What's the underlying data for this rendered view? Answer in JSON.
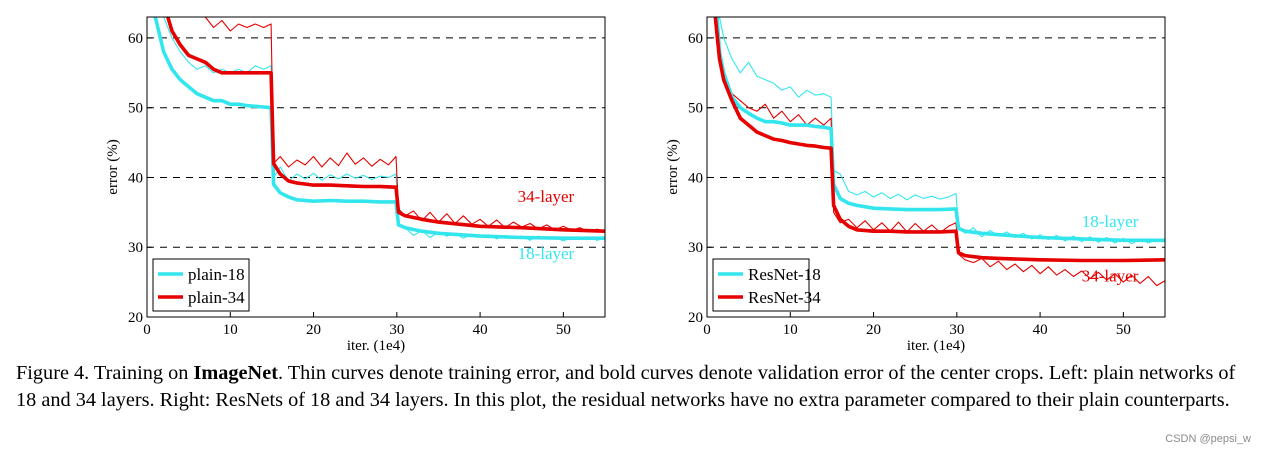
{
  "caption": {
    "figure_label": "Figure 4. Training on ",
    "bold_term": "ImageNet",
    "text": ". Thin curves denote training error, and bold curves denote validation error of the center crops. Left: plain networks of 18 and 34 layers. Right: ResNets of 18 and 34 layers. In this plot, the residual networks have no extra parameter compared to their plain counterparts."
  },
  "watermark": "CSDN @pepsi_w",
  "colors": {
    "cyan": "#33e6ee",
    "red": "#e60000"
  },
  "chart_data": [
    {
      "type": "line",
      "xlabel": "iter. (1e4)",
      "ylabel": "error (%)",
      "xlim": [
        0,
        55
      ],
      "ylim": [
        20,
        63
      ],
      "xticks": [
        0,
        10,
        20,
        30,
        40,
        50
      ],
      "yticks": [
        20,
        30,
        40,
        50,
        60
      ],
      "grid": "dashed horizontal",
      "legend_placement": "bottom-left",
      "annotations": [
        {
          "text": "34-layer",
          "x": 44.5,
          "y": 36.5,
          "color": "#e60000"
        },
        {
          "text": "18-layer",
          "x": 44.5,
          "y": 28.3,
          "color": "#33e6ee"
        }
      ],
      "series": [
        {
          "name": "plain-18",
          "role": "validation",
          "color": "#33e6ee",
          "x": [
            1,
            2,
            3,
            4,
            5,
            6,
            7,
            8,
            9,
            10,
            11,
            12,
            13,
            14,
            14.9,
            15.2,
            16,
            17,
            18,
            20,
            22,
            24,
            26,
            28,
            29.9,
            30.2,
            31,
            33,
            35,
            40,
            45,
            50,
            55
          ],
          "y": [
            63,
            58,
            55.5,
            54,
            53,
            52,
            51.5,
            51,
            51,
            50.5,
            50.5,
            50.3,
            50.2,
            50.1,
            50,
            39,
            37.8,
            37.2,
            36.8,
            36.6,
            36.7,
            36.6,
            36.6,
            36.5,
            36.5,
            33.2,
            32.8,
            32.3,
            32,
            31.6,
            31.4,
            31.3,
            31.3
          ]
        },
        {
          "name": "plain-34",
          "role": "validation",
          "color": "#e60000",
          "x": [
            2.5,
            3,
            4,
            5,
            6,
            7,
            8,
            9,
            10,
            11,
            12,
            13,
            14,
            14.9,
            15.2,
            16,
            17,
            18,
            20,
            22,
            24,
            26,
            28,
            29.9,
            30.2,
            31,
            33,
            35,
            40,
            45,
            50,
            55
          ],
          "y": [
            63,
            61,
            59,
            57.5,
            57,
            56.5,
            55.5,
            55,
            55,
            55,
            55,
            55,
            55,
            55,
            42,
            40.5,
            39.5,
            39.2,
            38.9,
            38.9,
            38.8,
            38.7,
            38.7,
            38.6,
            35,
            34.5,
            34,
            33.6,
            33,
            32.8,
            32.5,
            32.3
          ]
        },
        {
          "name": "plain-18 (train)",
          "role": "training",
          "color": "#33e6ee",
          "x": [
            2,
            3,
            4,
            5,
            6,
            7,
            8,
            9,
            10,
            11,
            12,
            13,
            14,
            14.9,
            15.2,
            16,
            17,
            18,
            19,
            20,
            21,
            22,
            23,
            24,
            25,
            26,
            27,
            28,
            29,
            29.9,
            30.2,
            31,
            32,
            33,
            34,
            35,
            36,
            37,
            38,
            39,
            40,
            41,
            42,
            43,
            44,
            45,
            46,
            47,
            48,
            49,
            50,
            51,
            52,
            53,
            54,
            55
          ],
          "y": [
            63,
            60,
            58,
            56.5,
            55.5,
            56,
            55,
            55.5,
            55,
            55.5,
            55,
            56,
            55.5,
            56,
            40,
            41.5,
            39.5,
            40.5,
            39.8,
            40.6,
            39.6,
            40.4,
            39.8,
            40.5,
            39.9,
            40.3,
            39.7,
            40.2,
            40,
            40.5,
            33,
            32.8,
            31.7,
            32.4,
            31.4,
            32.2,
            31.6,
            32,
            31.3,
            31.9,
            31.5,
            31.8,
            31.2,
            31.7,
            31.4,
            31.6,
            31,
            31.6,
            31.2,
            31.5,
            30.9,
            31.4,
            31.1,
            31.5,
            31,
            31.3
          ]
        },
        {
          "name": "plain-34 (train)",
          "role": "training",
          "color": "#e60000",
          "x": [
            7,
            8,
            9,
            10,
            11,
            12,
            13,
            14,
            14.9,
            15.2,
            16,
            17,
            18,
            19,
            20,
            21,
            22,
            23,
            24,
            25,
            26,
            27,
            28,
            29,
            29.9,
            30.2,
            31,
            32,
            33,
            34,
            35,
            36,
            37,
            38,
            39,
            40,
            41,
            42,
            43,
            44,
            45,
            46,
            47,
            48,
            49,
            50,
            51,
            52,
            53,
            54,
            55
          ],
          "y": [
            63,
            61.5,
            62.5,
            61,
            62,
            61.5,
            62,
            61.5,
            62,
            42,
            43,
            41.5,
            42.5,
            41.8,
            43,
            41.5,
            42.8,
            41.7,
            43.5,
            41.9,
            42.8,
            41.6,
            42.6,
            41.8,
            43,
            35.5,
            34.5,
            35.2,
            33.8,
            35,
            33.6,
            34.8,
            33.4,
            34.5,
            33.3,
            34,
            33,
            33.9,
            32.8,
            33.6,
            32.9,
            33.4,
            32.6,
            33.2,
            32.5,
            33,
            32.4,
            32.8,
            32.2,
            32.6,
            32.3
          ]
        }
      ]
    },
    {
      "type": "line",
      "xlabel": "iter. (1e4)",
      "ylabel": "error (%)",
      "xlim": [
        0,
        55
      ],
      "ylim": [
        20,
        63
      ],
      "xticks": [
        0,
        10,
        20,
        30,
        40,
        50
      ],
      "yticks": [
        20,
        30,
        40,
        50,
        60
      ],
      "grid": "dashed horizontal",
      "legend_placement": "bottom-left",
      "annotations": [
        {
          "text": "18-layer",
          "x": 45,
          "y": 32.9,
          "color": "#33e6ee"
        },
        {
          "text": "34-layer",
          "x": 45,
          "y": 25.1,
          "color": "#e60000"
        }
      ],
      "series": [
        {
          "name": "ResNet-18",
          "role": "validation",
          "color": "#33e6ee",
          "x": [
            1.2,
            1.5,
            2,
            3,
            4,
            5,
            6,
            7,
            8,
            9,
            10,
            11,
            12,
            13,
            14,
            14.9,
            15.2,
            16,
            17,
            18,
            20,
            22,
            24,
            26,
            28,
            29.9,
            30.2,
            31,
            33,
            35,
            40,
            45,
            50,
            55
          ],
          "y": [
            63,
            58,
            55,
            51.5,
            50,
            49.2,
            48.5,
            48,
            48,
            47.8,
            47.5,
            47.5,
            47.5,
            47.3,
            47.2,
            47,
            39,
            37,
            36.3,
            36,
            35.6,
            35.5,
            35.4,
            35.4,
            35.4,
            35.5,
            32.7,
            32.3,
            32,
            31.8,
            31.4,
            31.2,
            31,
            31
          ]
        },
        {
          "name": "ResNet-34",
          "role": "validation",
          "color": "#e60000",
          "x": [
            1,
            1.5,
            2,
            3,
            4,
            5,
            6,
            7,
            8,
            9,
            10,
            11,
            12,
            13,
            14,
            14.9,
            15.2,
            16,
            17,
            18,
            20,
            22,
            24,
            26,
            28,
            29.9,
            30.2,
            31,
            33,
            35,
            40,
            45,
            50,
            55
          ],
          "y": [
            63,
            57,
            54,
            51,
            48.5,
            47.5,
            46.5,
            46,
            45.5,
            45.3,
            45,
            44.8,
            44.6,
            44.5,
            44.3,
            44.2,
            36,
            34,
            33,
            32.5,
            32.3,
            32.3,
            32.2,
            32.2,
            32.2,
            32.3,
            29.2,
            28.8,
            28.5,
            28.4,
            28.2,
            28.1,
            28.1,
            28.2
          ]
        },
        {
          "name": "ResNet-18 (train)",
          "role": "training",
          "color": "#33e6ee",
          "x": [
            1.5,
            2,
            3,
            4,
            5,
            6,
            7,
            8,
            9,
            10,
            11,
            12,
            13,
            14,
            14.9,
            15.2,
            16,
            17,
            18,
            19,
            20,
            21,
            22,
            23,
            24,
            25,
            26,
            27,
            28,
            29,
            29.9,
            30.2,
            31,
            32,
            33,
            34,
            35,
            36,
            37,
            38,
            39,
            40,
            41,
            42,
            43,
            44,
            45,
            46,
            47,
            48,
            49,
            50,
            51,
            52,
            53,
            54,
            55
          ],
          "y": [
            63,
            60,
            57,
            55,
            56.5,
            54.5,
            54,
            53.5,
            52.5,
            53,
            51.5,
            52.5,
            51.8,
            52,
            51.5,
            41,
            40.5,
            38,
            37.5,
            38,
            37.2,
            37.8,
            37,
            37.6,
            36.8,
            37.5,
            37,
            37.3,
            36.9,
            37.2,
            37.7,
            33,
            32,
            32.8,
            31.5,
            32.4,
            31.6,
            32.2,
            31.4,
            32,
            31.2,
            31.8,
            31.1,
            31.7,
            30.9,
            31.6,
            30.8,
            31.5,
            30.7,
            31.4,
            30.6,
            31.3,
            30.5,
            31.2,
            30.6,
            31.1,
            30.8
          ]
        },
        {
          "name": "ResNet-34 (train)",
          "role": "training",
          "color": "#e60000",
          "x": [
            1.2,
            1.5,
            2,
            3,
            4,
            5,
            6,
            7,
            8,
            9,
            10,
            11,
            12,
            13,
            14,
            14.9,
            15.2,
            16,
            17,
            18,
            19,
            20,
            21,
            22,
            23,
            24,
            25,
            26,
            27,
            28,
            29,
            29.9,
            30.2,
            31,
            32,
            33,
            34,
            35,
            36,
            37,
            38,
            39,
            40,
            41,
            42,
            43,
            44,
            45,
            46,
            47,
            48,
            49,
            50,
            51,
            52,
            53,
            54,
            55
          ],
          "y": [
            63,
            58,
            55,
            52,
            51,
            50,
            49.5,
            50.5,
            48.5,
            49.5,
            48,
            49,
            47.5,
            48.5,
            47.5,
            48.5,
            35,
            33.5,
            34,
            32.8,
            33.8,
            32.5,
            33.5,
            32.3,
            33.6,
            32.2,
            33.4,
            32.3,
            33.2,
            32.1,
            33,
            33.5,
            29,
            28.2,
            27.8,
            28.4,
            27.2,
            28,
            26.8,
            27.6,
            26.5,
            27.4,
            26.2,
            27.2,
            26,
            26.8,
            25.8,
            26.6,
            25.5,
            26.4,
            25.3,
            26.2,
            25,
            26,
            24.8,
            25.8,
            24.5,
            25.2
          ]
        }
      ]
    }
  ]
}
